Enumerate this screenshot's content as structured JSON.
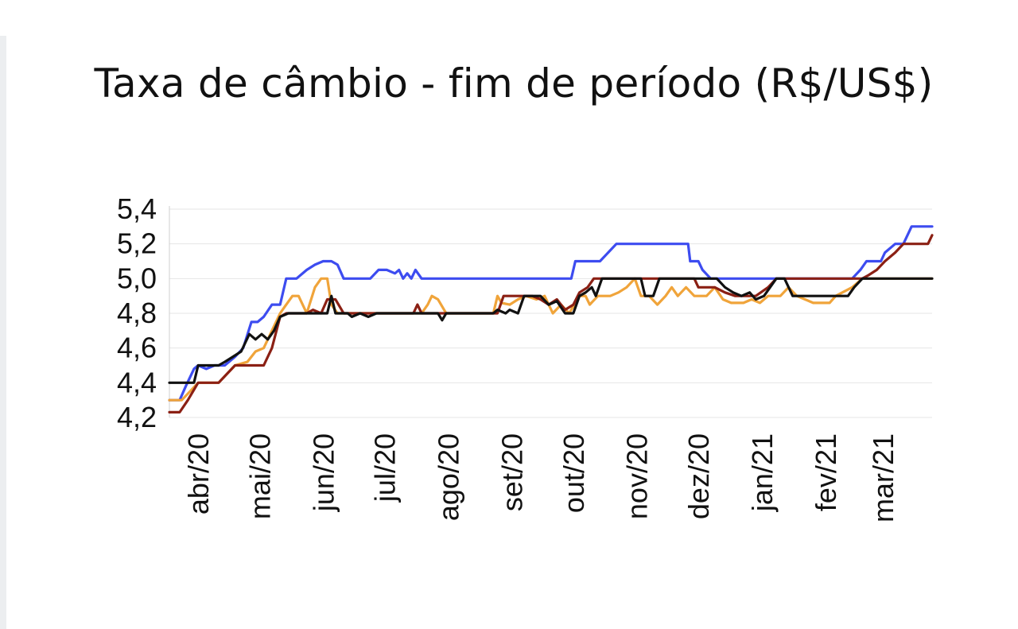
{
  "chart_data": {
    "type": "line",
    "title": "Taxa de câmbio - fim de período (R$/US$)",
    "xlabel": "",
    "ylabel": "",
    "ylim": [
      4.2,
      5.4
    ],
    "yticks": [
      "5,4",
      "5,2",
      "5,0",
      "4,8",
      "4,6",
      "4,4",
      "4,2"
    ],
    "ytick_values": [
      5.4,
      5.2,
      5.0,
      4.8,
      4.6,
      4.4,
      4.2
    ],
    "x_axis": {
      "start": "2020-03-19",
      "end": "2021-03-26",
      "tick_dates": [
        "2020-04-01",
        "2020-05-01",
        "2020-06-01",
        "2020-07-01",
        "2020-08-01",
        "2020-09-01",
        "2020-10-01",
        "2020-11-01",
        "2020-12-01",
        "2021-01-01",
        "2021-02-01",
        "2021-03-01"
      ],
      "tick_labels": [
        "abr/20",
        "mai/20",
        "jun/20",
        "jul/20",
        "ago/20",
        "set/20",
        "out/20",
        "nov/20",
        "dez/20",
        "jan/21",
        "fev/21",
        "mar/21"
      ]
    },
    "grid": true,
    "legend": "none",
    "series": [
      {
        "color": "#3d4cf0",
        "points": [
          [
            "2020-03-19",
            4.3
          ],
          [
            "2020-03-24",
            4.3
          ],
          [
            "2020-03-27",
            4.38
          ],
          [
            "2020-03-31",
            4.48
          ],
          [
            "2020-04-02",
            4.5
          ],
          [
            "2020-04-06",
            4.48
          ],
          [
            "2020-04-10",
            4.5
          ],
          [
            "2020-04-15",
            4.5
          ],
          [
            "2020-04-20",
            4.55
          ],
          [
            "2020-04-24",
            4.6
          ],
          [
            "2020-04-28",
            4.75
          ],
          [
            "2020-05-01",
            4.75
          ],
          [
            "2020-05-04",
            4.78
          ],
          [
            "2020-05-08",
            4.85
          ],
          [
            "2020-05-12",
            4.85
          ],
          [
            "2020-05-15",
            5.0
          ],
          [
            "2020-05-20",
            5.0
          ],
          [
            "2020-05-25",
            5.05
          ],
          [
            "2020-05-29",
            5.08
          ],
          [
            "2020-06-02",
            5.1
          ],
          [
            "2020-06-06",
            5.1
          ],
          [
            "2020-06-09",
            5.08
          ],
          [
            "2020-06-12",
            5.0
          ],
          [
            "2020-06-25",
            5.0
          ],
          [
            "2020-06-29",
            5.05
          ],
          [
            "2020-07-03",
            5.05
          ],
          [
            "2020-07-07",
            5.03
          ],
          [
            "2020-07-09",
            5.05
          ],
          [
            "2020-07-11",
            5.0
          ],
          [
            "2020-07-13",
            5.03
          ],
          [
            "2020-07-15",
            5.0
          ],
          [
            "2020-07-17",
            5.05
          ],
          [
            "2020-07-20",
            5.0
          ],
          [
            "2020-10-01",
            5.0
          ],
          [
            "2020-10-03",
            5.1
          ],
          [
            "2020-10-15",
            5.1
          ],
          [
            "2020-10-19",
            5.15
          ],
          [
            "2020-10-23",
            5.2
          ],
          [
            "2020-11-27",
            5.2
          ],
          [
            "2020-11-28",
            5.1
          ],
          [
            "2020-12-02",
            5.1
          ],
          [
            "2020-12-04",
            5.05
          ],
          [
            "2020-12-08",
            5.0
          ],
          [
            "2021-02-15",
            5.0
          ],
          [
            "2021-02-19",
            5.05
          ],
          [
            "2021-02-22",
            5.1
          ],
          [
            "2021-03-01",
            5.1
          ],
          [
            "2021-03-03",
            5.15
          ],
          [
            "2021-03-08",
            5.2
          ],
          [
            "2021-03-12",
            5.2
          ],
          [
            "2021-03-16",
            5.3
          ],
          [
            "2021-03-26",
            5.3
          ]
        ]
      },
      {
        "color": "#f0a43a",
        "points": [
          [
            "2020-03-19",
            4.3
          ],
          [
            "2020-03-25",
            4.3
          ],
          [
            "2020-03-29",
            4.35
          ],
          [
            "2020-04-02",
            4.4
          ],
          [
            "2020-04-12",
            4.4
          ],
          [
            "2020-04-16",
            4.45
          ],
          [
            "2020-04-20",
            4.5
          ],
          [
            "2020-04-26",
            4.52
          ],
          [
            "2020-04-30",
            4.58
          ],
          [
            "2020-05-04",
            4.6
          ],
          [
            "2020-05-08",
            4.7
          ],
          [
            "2020-05-12",
            4.8
          ],
          [
            "2020-05-15",
            4.85
          ],
          [
            "2020-05-18",
            4.9
          ],
          [
            "2020-05-21",
            4.9
          ],
          [
            "2020-05-25",
            4.8
          ],
          [
            "2020-05-29",
            4.95
          ],
          [
            "2020-06-01",
            5.0
          ],
          [
            "2020-06-04",
            5.0
          ],
          [
            "2020-06-06",
            4.85
          ],
          [
            "2020-06-09",
            4.8
          ],
          [
            "2020-07-20",
            4.8
          ],
          [
            "2020-07-23",
            4.85
          ],
          [
            "2020-07-25",
            4.9
          ],
          [
            "2020-07-28",
            4.88
          ],
          [
            "2020-08-01",
            4.8
          ],
          [
            "2020-08-24",
            4.8
          ],
          [
            "2020-08-26",
            4.9
          ],
          [
            "2020-08-28",
            4.86
          ],
          [
            "2020-09-01",
            4.85
          ],
          [
            "2020-09-05",
            4.88
          ],
          [
            "2020-09-09",
            4.9
          ],
          [
            "2020-09-14",
            4.88
          ],
          [
            "2020-09-18",
            4.9
          ],
          [
            "2020-09-22",
            4.8
          ],
          [
            "2020-09-26",
            4.85
          ],
          [
            "2020-09-30",
            4.8
          ],
          [
            "2020-10-05",
            4.9
          ],
          [
            "2020-10-08",
            4.9
          ],
          [
            "2020-10-10",
            4.85
          ],
          [
            "2020-10-14",
            4.9
          ],
          [
            "2020-10-20",
            4.9
          ],
          [
            "2020-10-24",
            4.92
          ],
          [
            "2020-10-28",
            4.95
          ],
          [
            "2020-11-01",
            5.0
          ],
          [
            "2020-11-04",
            4.9
          ],
          [
            "2020-11-08",
            4.9
          ],
          [
            "2020-11-12",
            4.85
          ],
          [
            "2020-11-16",
            4.9
          ],
          [
            "2020-11-19",
            4.95
          ],
          [
            "2020-11-22",
            4.9
          ],
          [
            "2020-11-26",
            4.95
          ],
          [
            "2020-11-30",
            4.9
          ],
          [
            "2020-12-06",
            4.9
          ],
          [
            "2020-12-10",
            4.95
          ],
          [
            "2020-12-14",
            4.88
          ],
          [
            "2020-12-18",
            4.86
          ],
          [
            "2020-12-24",
            4.86
          ],
          [
            "2020-12-28",
            4.88
          ],
          [
            "2021-01-01",
            4.86
          ],
          [
            "2021-01-05",
            4.9
          ],
          [
            "2021-01-11",
            4.9
          ],
          [
            "2021-01-15",
            4.95
          ],
          [
            "2021-01-19",
            4.9
          ],
          [
            "2021-01-23",
            4.88
          ],
          [
            "2021-01-27",
            4.86
          ],
          [
            "2021-02-04",
            4.86
          ],
          [
            "2021-02-07",
            4.9
          ],
          [
            "2021-02-15",
            4.95
          ],
          [
            "2021-02-20",
            5.0
          ],
          [
            "2021-03-26",
            5.0
          ]
        ]
      },
      {
        "color": "#8b2014",
        "points": [
          [
            "2020-03-19",
            4.23
          ],
          [
            "2020-03-24",
            4.23
          ],
          [
            "2020-03-28",
            4.3
          ],
          [
            "2020-04-02",
            4.4
          ],
          [
            "2020-04-12",
            4.4
          ],
          [
            "2020-04-16",
            4.45
          ],
          [
            "2020-04-20",
            4.5
          ],
          [
            "2020-05-04",
            4.5
          ],
          [
            "2020-05-08",
            4.6
          ],
          [
            "2020-05-12",
            4.78
          ],
          [
            "2020-05-15",
            4.8
          ],
          [
            "2020-05-25",
            4.8
          ],
          [
            "2020-05-28",
            4.82
          ],
          [
            "2020-06-01",
            4.8
          ],
          [
            "2020-06-04",
            4.88
          ],
          [
            "2020-06-08",
            4.88
          ],
          [
            "2020-06-12",
            4.8
          ],
          [
            "2020-07-16",
            4.8
          ],
          [
            "2020-07-18",
            4.85
          ],
          [
            "2020-07-20",
            4.8
          ],
          [
            "2020-08-26",
            4.8
          ],
          [
            "2020-08-29",
            4.9
          ],
          [
            "2020-09-12",
            4.9
          ],
          [
            "2020-09-16",
            4.88
          ],
          [
            "2020-09-20",
            4.85
          ],
          [
            "2020-09-24",
            4.88
          ],
          [
            "2020-09-28",
            4.82
          ],
          [
            "2020-10-02",
            4.85
          ],
          [
            "2020-10-05",
            4.92
          ],
          [
            "2020-10-09",
            4.95
          ],
          [
            "2020-10-12",
            5.0
          ],
          [
            "2020-11-30",
            5.0
          ],
          [
            "2020-12-02",
            4.95
          ],
          [
            "2020-12-10",
            4.95
          ],
          [
            "2020-12-15",
            4.92
          ],
          [
            "2020-12-20",
            4.9
          ],
          [
            "2020-12-30",
            4.9
          ],
          [
            "2021-01-05",
            4.95
          ],
          [
            "2021-01-09",
            5.0
          ],
          [
            "2021-02-20",
            5.0
          ],
          [
            "2021-02-23",
            5.02
          ],
          [
            "2021-02-27",
            5.05
          ],
          [
            "2021-03-03",
            5.1
          ],
          [
            "2021-03-08",
            5.15
          ],
          [
            "2021-03-12",
            5.2
          ],
          [
            "2021-03-24",
            5.2
          ],
          [
            "2021-03-26",
            5.25
          ]
        ]
      },
      {
        "color": "#111111",
        "points": [
          [
            "2020-03-19",
            4.4
          ],
          [
            "2020-03-31",
            4.4
          ],
          [
            "2020-04-02",
            4.5
          ],
          [
            "2020-04-12",
            4.5
          ],
          [
            "2020-04-15",
            4.52
          ],
          [
            "2020-04-19",
            4.55
          ],
          [
            "2020-04-23",
            4.58
          ],
          [
            "2020-04-27",
            4.68
          ],
          [
            "2020-04-30",
            4.65
          ],
          [
            "2020-05-03",
            4.68
          ],
          [
            "2020-05-06",
            4.65
          ],
          [
            "2020-05-09",
            4.7
          ],
          [
            "2020-05-12",
            4.78
          ],
          [
            "2020-05-16",
            4.8
          ],
          [
            "2020-06-04",
            4.8
          ],
          [
            "2020-06-06",
            4.9
          ],
          [
            "2020-06-08",
            4.8
          ],
          [
            "2020-06-14",
            4.8
          ],
          [
            "2020-06-16",
            4.78
          ],
          [
            "2020-06-20",
            4.8
          ],
          [
            "2020-06-24",
            4.78
          ],
          [
            "2020-06-28",
            4.8
          ],
          [
            "2020-07-28",
            4.8
          ],
          [
            "2020-07-30",
            4.76
          ],
          [
            "2020-08-01",
            4.8
          ],
          [
            "2020-08-24",
            4.8
          ],
          [
            "2020-08-26",
            4.82
          ],
          [
            "2020-08-30",
            4.8
          ],
          [
            "2020-09-01",
            4.82
          ],
          [
            "2020-09-05",
            4.8
          ],
          [
            "2020-09-08",
            4.9
          ],
          [
            "2020-09-16",
            4.9
          ],
          [
            "2020-09-20",
            4.85
          ],
          [
            "2020-09-24",
            4.87
          ],
          [
            "2020-09-28",
            4.8
          ],
          [
            "2020-10-02",
            4.8
          ],
          [
            "2020-10-05",
            4.9
          ],
          [
            "2020-10-08",
            4.92
          ],
          [
            "2020-10-11",
            4.95
          ],
          [
            "2020-10-13",
            4.9
          ],
          [
            "2020-10-16",
            5.0
          ],
          [
            "2020-11-04",
            5.0
          ],
          [
            "2020-11-06",
            4.9
          ],
          [
            "2020-11-10",
            4.9
          ],
          [
            "2020-11-13",
            5.0
          ],
          [
            "2020-12-11",
            5.0
          ],
          [
            "2020-12-15",
            4.95
          ],
          [
            "2020-12-19",
            4.92
          ],
          [
            "2020-12-23",
            4.9
          ],
          [
            "2020-12-27",
            4.92
          ],
          [
            "2020-12-30",
            4.88
          ],
          [
            "2021-01-03",
            4.9
          ],
          [
            "2021-01-06",
            4.95
          ],
          [
            "2021-01-09",
            5.0
          ],
          [
            "2021-01-13",
            5.0
          ],
          [
            "2021-01-17",
            4.9
          ],
          [
            "2021-02-13",
            4.9
          ],
          [
            "2021-02-16",
            4.95
          ],
          [
            "2021-02-20",
            5.0
          ],
          [
            "2021-03-26",
            5.0
          ]
        ]
      }
    ]
  }
}
